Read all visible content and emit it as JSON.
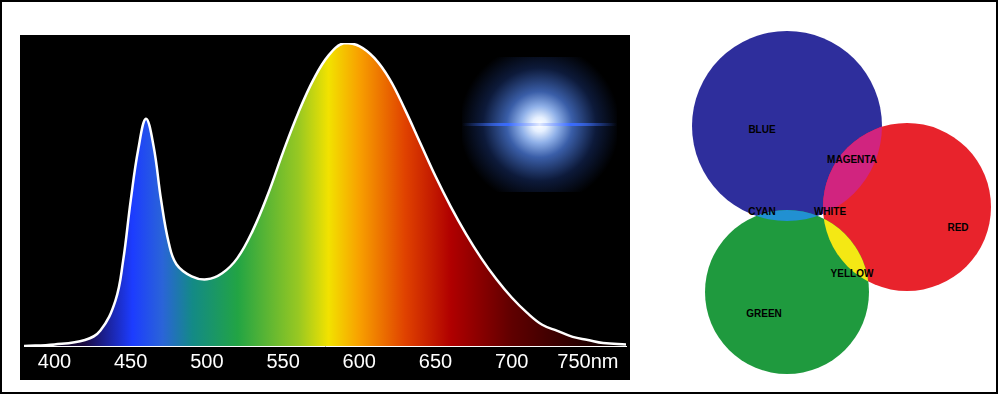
{
  "chart_data": {
    "type": "line",
    "x": [
      380,
      400,
      420,
      430,
      440,
      445,
      450,
      455,
      460,
      465,
      470,
      475,
      480,
      490,
      500,
      510,
      520,
      530,
      540,
      550,
      560,
      570,
      580,
      590,
      600,
      610,
      620,
      630,
      640,
      650,
      660,
      670,
      680,
      690,
      700,
      710,
      720,
      730,
      740,
      750,
      760,
      775
    ],
    "values": [
      0,
      0.5,
      2,
      5,
      15,
      28,
      48,
      65,
      75,
      66,
      48,
      34,
      27,
      23,
      22,
      24,
      29,
      38,
      50,
      64,
      77,
      88,
      96,
      100,
      99,
      95,
      88,
      78,
      67,
      56,
      46,
      37,
      29,
      22,
      16,
      11,
      7,
      5,
      3,
      2,
      1,
      0.5
    ],
    "xlim": [
      380,
      775
    ],
    "xticks": [
      400,
      450,
      500,
      550,
      600,
      650,
      700,
      {
        "value": 750,
        "label": "750nm"
      }
    ],
    "ylim": [
      0,
      100
    ],
    "tick_labels": "x",
    "grid": false,
    "color": "#ffffff"
  },
  "diagram": {
    "venn": {
      "circles": [
        {
          "label": "BLUE",
          "color": "#2e2e9c"
        },
        {
          "label": "RED",
          "color": "#e8232c"
        },
        {
          "label": "GREEN",
          "color": "#1f9a3e"
        }
      ],
      "overlaps": [
        {
          "label": "MAGENTA",
          "of": [
            "BLUE",
            "RED"
          ],
          "color": "#d1247f"
        },
        {
          "label": "CYAN",
          "of": [
            "BLUE",
            "GREEN"
          ],
          "color": "#2190d2"
        },
        {
          "label": "YELLOW",
          "of": [
            "RED",
            "GREEN"
          ],
          "color": "#f4e814"
        },
        {
          "label": "WHITE",
          "of": [
            "BLUE",
            "RED",
            "GREEN"
          ],
          "color": "#ffffff"
        }
      ]
    }
  }
}
